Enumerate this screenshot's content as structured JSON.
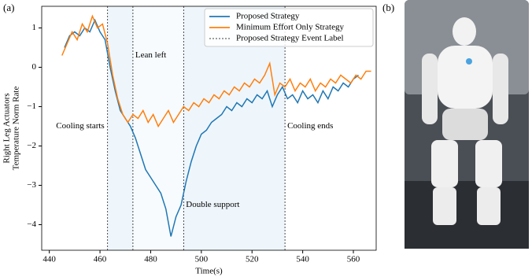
{
  "panel_labels": [
    "(a)",
    "(b)"
  ],
  "chart_data": {
    "type": "line",
    "ylabel": [
      "Right Leg Actuators",
      "Temperature Norm Rate"
    ],
    "xlabel": "Time(s)",
    "xlim": [
      437,
      569
    ],
    "ylim": [
      -4.65,
      1.55
    ],
    "xticks": [
      440,
      460,
      480,
      500,
      520,
      540,
      560
    ],
    "yticks": [
      {
        "value": -4,
        "label": "−4"
      },
      {
        "value": -3,
        "label": "−3"
      },
      {
        "value": -2,
        "label": "−2"
      },
      {
        "value": -1,
        "label": "−1"
      },
      0,
      1
    ],
    "legend": "upper right",
    "series": [
      {
        "name": "Proposed Strategy",
        "color": "#1f77b4",
        "x": [
          446,
          448,
          450,
          452,
          454,
          456,
          458,
          460,
          462,
          464,
          466,
          468,
          470,
          472,
          474,
          476,
          478,
          480,
          482,
          484,
          486,
          488,
          490,
          492,
          494,
          496,
          498,
          500,
          502,
          504,
          506,
          508,
          510,
          512,
          514,
          516,
          518,
          520,
          522,
          524,
          526,
          528,
          530,
          532,
          534,
          536,
          538,
          540,
          542,
          544,
          546,
          548,
          550,
          552,
          554,
          556,
          558,
          560,
          562
        ],
        "values": [
          0.5,
          0.8,
          0.9,
          0.8,
          1.0,
          0.9,
          1.2,
          0.9,
          0.7,
          0.0,
          -0.6,
          -1.1,
          -1.3,
          -1.5,
          -1.8,
          -2.2,
          -2.6,
          -2.8,
          -3.0,
          -3.2,
          -3.6,
          -4.3,
          -3.8,
          -3.5,
          -2.9,
          -2.4,
          -2.0,
          -1.7,
          -1.6,
          -1.4,
          -1.3,
          -1.2,
          -1.0,
          -1.1,
          -0.9,
          -1.0,
          -0.8,
          -0.9,
          -0.7,
          -0.8,
          -0.6,
          -1.0,
          -0.7,
          -0.5,
          -0.8,
          -0.7,
          -0.9,
          -0.6,
          -0.8,
          -0.7,
          -0.9,
          -0.6,
          -0.8,
          -0.5,
          -0.6,
          -0.4,
          -0.5,
          -0.3,
          -0.2
        ]
      },
      {
        "name": "Minimum Effort Only Strategy",
        "color": "#ff7f0e",
        "x": [
          445,
          447,
          449,
          451,
          453,
          455,
          457,
          459,
          461,
          463,
          465,
          467,
          469,
          471,
          473,
          475,
          477,
          479,
          481,
          483,
          485,
          487,
          489,
          491,
          493,
          495,
          497,
          499,
          501,
          503,
          505,
          507,
          509,
          511,
          513,
          515,
          517,
          519,
          521,
          523,
          525,
          527,
          529,
          531,
          533,
          535,
          537,
          539,
          541,
          543,
          545,
          547,
          549,
          551,
          553,
          555,
          557,
          559,
          561,
          563,
          565,
          567
        ],
        "values": [
          0.3,
          0.6,
          0.9,
          0.7,
          1.1,
          0.9,
          1.3,
          1.0,
          1.1,
          0.6,
          -0.2,
          -0.8,
          -1.2,
          -1.4,
          -1.2,
          -1.3,
          -1.1,
          -1.4,
          -1.2,
          -1.5,
          -1.3,
          -1.1,
          -1.4,
          -1.2,
          -1.0,
          -1.1,
          -0.9,
          -1.0,
          -0.8,
          -0.9,
          -0.7,
          -0.8,
          -0.6,
          -0.7,
          -0.5,
          -0.6,
          -0.4,
          -0.5,
          -0.3,
          -0.4,
          -0.2,
          0.1,
          -0.7,
          -0.4,
          -0.5,
          -0.3,
          -0.6,
          -0.4,
          -0.5,
          -0.3,
          -0.6,
          -0.4,
          -0.5,
          -0.3,
          -0.4,
          -0.2,
          -0.3,
          -0.4,
          -0.2,
          -0.3,
          -0.1,
          -0.1
        ]
      }
    ],
    "events": {
      "name": "Proposed Strategy Event Label",
      "color": "#000000",
      "x": [
        463,
        473,
        493,
        533
      ],
      "labels": [
        "Cooling starts",
        "Lean left",
        "Double support",
        "Cooling ends"
      ]
    }
  }
}
